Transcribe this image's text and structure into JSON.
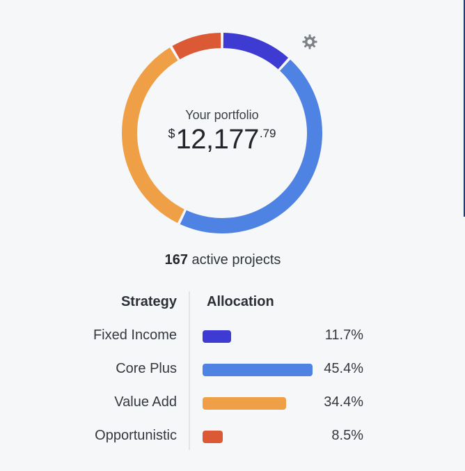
{
  "portfolio": {
    "label": "Your portfolio",
    "currency_symbol": "$",
    "amount_whole": "12,177",
    "amount_cents": ".79"
  },
  "settings_icon": "gear-icon",
  "projects": {
    "count": "167",
    "label": "active projects"
  },
  "table": {
    "headers": {
      "strategy": "Strategy",
      "allocation": "Allocation"
    },
    "rows": [
      {
        "strategy": "Fixed Income",
        "allocation": "11.7%",
        "value": 11.7,
        "color": "#3d3bd1"
      },
      {
        "strategy": "Core Plus",
        "allocation": "45.4%",
        "value": 45.4,
        "color": "#4e82e3"
      },
      {
        "strategy": "Value Add",
        "allocation": "34.4%",
        "value": 34.4,
        "color": "#efa047"
      },
      {
        "strategy": "Opportunistic",
        "allocation": "8.5%",
        "value": 8.5,
        "color": "#dc5935"
      }
    ]
  },
  "colors": {
    "background": "#f6f7f9",
    "fixed_income": "#3d3bd1",
    "core_plus": "#4e82e3",
    "value_add": "#efa047",
    "opportunistic": "#dc5935"
  }
}
